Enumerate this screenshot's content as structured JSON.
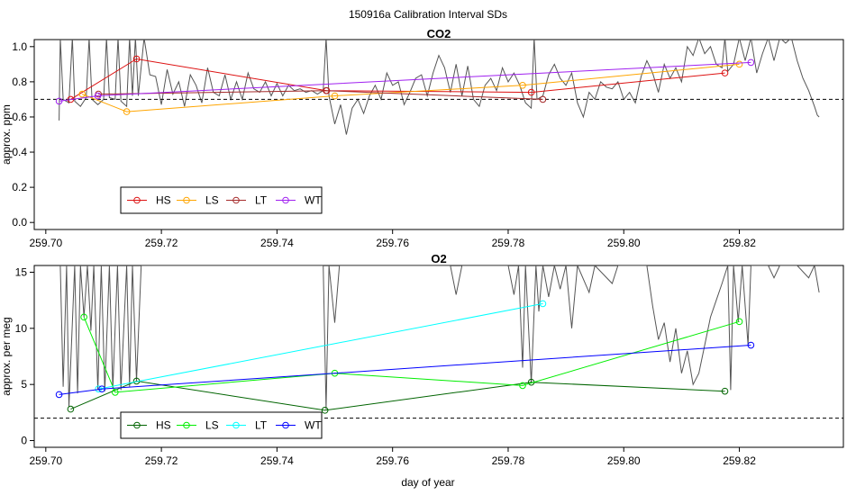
{
  "figure_title": "150916a   Calibration Interval SDs",
  "xlabel": "day of year",
  "chart_data": [
    {
      "type": "line",
      "title": "CO2",
      "ylabel": "approx. ppm",
      "xlim": [
        259.698,
        259.838
      ],
      "ylim": [
        -0.04,
        1.04
      ],
      "xticks": [
        259.7,
        259.72,
        259.74,
        259.76,
        259.78,
        259.8,
        259.82
      ],
      "xtick_labels": [
        "259.70",
        "259.72",
        "259.74",
        "259.76",
        "259.78",
        "259.80",
        "259.82"
      ],
      "yticks": [
        0.0,
        0.2,
        0.4,
        0.6,
        0.8,
        1.0
      ],
      "ytick_labels": [
        "0.0",
        "0.2",
        "0.4",
        "0.6",
        "0.8",
        "1.0"
      ],
      "threshold": 0.7,
      "trace_color": "#555555",
      "trace": [
        [
          259.7023,
          0.58
        ],
        [
          259.7025,
          1.05
        ],
        [
          259.703,
          0.7
        ],
        [
          259.704,
          0.68
        ],
        [
          259.7046,
          1.05
        ],
        [
          259.705,
          0.69
        ],
        [
          259.706,
          0.66
        ],
        [
          259.707,
          0.71
        ],
        [
          259.7075,
          1.05
        ],
        [
          259.708,
          0.7
        ],
        [
          259.709,
          0.67
        ],
        [
          259.71,
          0.7
        ],
        [
          259.7105,
          1.05
        ],
        [
          259.711,
          0.71
        ],
        [
          259.712,
          0.7
        ],
        [
          259.7125,
          1.05
        ],
        [
          259.713,
          0.69
        ],
        [
          259.714,
          0.66
        ],
        [
          259.7145,
          1.05
        ],
        [
          259.715,
          0.72
        ],
        [
          259.7155,
          1.05
        ],
        [
          259.716,
          0.72
        ],
        [
          259.717,
          1.05
        ],
        [
          259.718,
          0.84
        ],
        [
          259.719,
          0.83
        ],
        [
          259.72,
          0.67
        ],
        [
          259.721,
          0.87
        ],
        [
          259.722,
          0.73
        ],
        [
          259.723,
          0.8
        ],
        [
          259.724,
          0.66
        ],
        [
          259.725,
          0.84
        ],
        [
          259.726,
          0.78
        ],
        [
          259.727,
          0.68
        ],
        [
          259.728,
          0.88
        ],
        [
          259.729,
          0.74
        ],
        [
          259.73,
          0.72
        ],
        [
          259.731,
          0.84
        ],
        [
          259.732,
          0.7
        ],
        [
          259.733,
          0.8
        ],
        [
          259.734,
          0.7
        ],
        [
          259.735,
          0.85
        ],
        [
          259.736,
          0.76
        ],
        [
          259.737,
          0.74
        ],
        [
          259.738,
          0.8
        ],
        [
          259.739,
          0.72
        ],
        [
          259.74,
          0.79
        ],
        [
          259.741,
          0.72
        ],
        [
          259.742,
          0.78
        ],
        [
          259.743,
          0.75
        ],
        [
          259.744,
          0.76
        ],
        [
          259.745,
          0.74
        ],
        [
          259.746,
          0.75
        ],
        [
          259.747,
          0.73
        ],
        [
          259.748,
          0.75
        ],
        [
          259.7485,
          1.05
        ],
        [
          259.749,
          0.72
        ],
        [
          259.75,
          0.56
        ],
        [
          259.751,
          0.67
        ],
        [
          259.752,
          0.5
        ],
        [
          259.753,
          0.65
        ],
        [
          259.754,
          0.7
        ],
        [
          259.755,
          0.62
        ],
        [
          259.756,
          0.72
        ],
        [
          259.757,
          0.78
        ],
        [
          259.758,
          0.7
        ],
        [
          259.759,
          0.85
        ],
        [
          259.76,
          0.78
        ],
        [
          259.761,
          0.8
        ],
        [
          259.762,
          0.67
        ],
        [
          259.763,
          0.74
        ],
        [
          259.764,
          0.82
        ],
        [
          259.765,
          0.84
        ],
        [
          259.766,
          0.72
        ],
        [
          259.767,
          0.85
        ],
        [
          259.768,
          0.95
        ],
        [
          259.769,
          0.88
        ],
        [
          259.77,
          0.74
        ],
        [
          259.771,
          0.9
        ],
        [
          259.772,
          0.72
        ],
        [
          259.773,
          0.89
        ],
        [
          259.774,
          0.7
        ],
        [
          259.775,
          0.66
        ],
        [
          259.776,
          0.78
        ],
        [
          259.777,
          0.82
        ],
        [
          259.778,
          0.75
        ],
        [
          259.779,
          0.88
        ],
        [
          259.78,
          0.8
        ],
        [
          259.781,
          0.85
        ],
        [
          259.782,
          0.78
        ],
        [
          259.783,
          0.68
        ],
        [
          259.784,
          0.65
        ],
        [
          259.7845,
          1.05
        ],
        [
          259.785,
          0.7
        ],
        [
          259.786,
          0.72
        ],
        [
          259.787,
          0.84
        ],
        [
          259.788,
          0.9
        ],
        [
          259.789,
          0.82
        ],
        [
          259.79,
          0.78
        ],
        [
          259.791,
          0.85
        ],
        [
          259.792,
          0.68
        ],
        [
          259.793,
          0.6
        ],
        [
          259.794,
          0.74
        ],
        [
          259.795,
          0.7
        ],
        [
          259.796,
          0.8
        ],
        [
          259.797,
          0.77
        ],
        [
          259.798,
          0.76
        ],
        [
          259.799,
          0.8
        ],
        [
          259.8,
          0.7
        ],
        [
          259.801,
          0.74
        ],
        [
          259.802,
          0.68
        ],
        [
          259.803,
          0.83
        ],
        [
          259.804,
          0.92
        ],
        [
          259.805,
          0.85
        ],
        [
          259.806,
          0.74
        ],
        [
          259.807,
          0.9
        ],
        [
          259.808,
          0.82
        ],
        [
          259.809,
          0.88
        ],
        [
          259.81,
          0.8
        ],
        [
          259.811,
          1.0
        ],
        [
          259.812,
          0.95
        ],
        [
          259.813,
          1.05
        ],
        [
          259.814,
          0.96
        ],
        [
          259.815,
          1.0
        ],
        [
          259.816,
          0.9
        ],
        [
          259.817,
          0.88
        ],
        [
          259.8175,
          1.05
        ],
        [
          259.818,
          0.86
        ],
        [
          259.819,
          0.9
        ],
        [
          259.82,
          1.05
        ],
        [
          259.821,
          0.92
        ],
        [
          259.822,
          1.05
        ],
        [
          259.823,
          0.85
        ],
        [
          259.824,
          0.96
        ],
        [
          259.825,
          1.05
        ],
        [
          259.826,
          0.92
        ],
        [
          259.827,
          1.05
        ],
        [
          259.828,
          1.02
        ],
        [
          259.829,
          1.05
        ],
        [
          259.83,
          0.92
        ],
        [
          259.831,
          0.82
        ],
        [
          259.832,
          0.75
        ],
        [
          259.833,
          0.66
        ],
        [
          259.8335,
          0.61
        ],
        [
          259.8338,
          0.6
        ]
      ],
      "legend": [
        "HS",
        "LS",
        "LT",
        "WT"
      ],
      "series": [
        {
          "name": "HS",
          "color": "#dd1111",
          "x": [
            259.7043,
            259.7157,
            259.7486,
            259.784,
            259.8175
          ],
          "y": [
            0.7,
            0.93,
            0.75,
            0.74,
            0.85
          ]
        },
        {
          "name": "LS",
          "color": "#ffa500",
          "x": [
            259.7063,
            259.714,
            259.75,
            259.7825,
            259.82
          ],
          "y": [
            0.73,
            0.63,
            0.72,
            0.78,
            0.9
          ]
        },
        {
          "name": "LT",
          "color": "#a52a2a",
          "x": [
            259.7091,
            259.7485,
            259.786
          ],
          "y": [
            0.73,
            0.75,
            0.7
          ]
        },
        {
          "name": "WT",
          "color": "#a020f0",
          "x": [
            259.7023,
            259.709,
            259.822
          ],
          "y": [
            0.69,
            0.72,
            0.91
          ]
        }
      ]
    },
    {
      "type": "line",
      "title": "O2",
      "ylabel": "approx. per meg",
      "xlim": [
        259.698,
        259.838
      ],
      "ylim": [
        -0.6,
        15.6
      ],
      "xticks": [
        259.7,
        259.72,
        259.74,
        259.76,
        259.78,
        259.8,
        259.82
      ],
      "xtick_labels": [
        "259.70",
        "259.72",
        "259.74",
        "259.76",
        "259.78",
        "259.80",
        "259.82"
      ],
      "yticks": [
        0,
        5,
        10,
        15
      ],
      "ytick_labels": [
        "0",
        "5",
        "10",
        "15"
      ],
      "threshold": 2,
      "trace_color": "#555555",
      "trace": [
        [
          259.7025,
          15.6
        ],
        [
          259.703,
          4.8
        ],
        [
          259.7036,
          15.6
        ],
        [
          259.704,
          3.0
        ],
        [
          259.705,
          15.6
        ],
        [
          259.7055,
          4.2
        ],
        [
          259.706,
          15.6
        ],
        [
          259.7066,
          11.0
        ],
        [
          259.7072,
          15.6
        ],
        [
          259.7078,
          9.8
        ],
        [
          259.7083,
          15.6
        ],
        [
          259.709,
          4.5
        ],
        [
          259.7096,
          15.6
        ],
        [
          259.7102,
          4.4
        ],
        [
          259.711,
          15.6
        ],
        [
          259.7116,
          4.6
        ],
        [
          259.7124,
          15.6
        ],
        [
          259.713,
          4.5
        ],
        [
          259.714,
          15.6
        ],
        [
          259.7145,
          4.8
        ],
        [
          259.715,
          15.6
        ],
        [
          259.7157,
          5.3
        ],
        [
          259.7165,
          15.6
        ],
        [
          259.748,
          15.6
        ],
        [
          259.7485,
          2.8
        ],
        [
          259.749,
          15.6
        ],
        [
          259.75,
          10.5
        ],
        [
          259.7508,
          15.6
        ],
        [
          259.77,
          15.6
        ],
        [
          259.771,
          13.0
        ],
        [
          259.772,
          15.6
        ],
        [
          259.78,
          15.6
        ],
        [
          259.781,
          13.0
        ],
        [
          259.7818,
          15.6
        ],
        [
          259.7825,
          6.5
        ],
        [
          259.783,
          15.6
        ],
        [
          259.784,
          5.1
        ],
        [
          259.7848,
          15.6
        ],
        [
          259.7853,
          11.5
        ],
        [
          259.786,
          15.6
        ],
        [
          259.787,
          12.8
        ],
        [
          259.788,
          15.6
        ],
        [
          259.789,
          13.5
        ],
        [
          259.79,
          15.6
        ],
        [
          259.791,
          10.0
        ],
        [
          259.792,
          15.6
        ],
        [
          259.794,
          13.2
        ],
        [
          259.795,
          15.6
        ],
        [
          259.798,
          14.0
        ],
        [
          259.799,
          15.6
        ],
        [
          259.804,
          15.6
        ],
        [
          259.805,
          12.0
        ],
        [
          259.806,
          9.0
        ],
        [
          259.807,
          10.5
        ],
        [
          259.808,
          7.0
        ],
        [
          259.809,
          10.0
        ],
        [
          259.81,
          6.0
        ],
        [
          259.811,
          8.0
        ],
        [
          259.812,
          5.0
        ],
        [
          259.813,
          6.0
        ],
        [
          259.814,
          8.5
        ],
        [
          259.815,
          11.0
        ],
        [
          259.816,
          12.5
        ],
        [
          259.817,
          14.0
        ],
        [
          259.818,
          15.6
        ],
        [
          259.8185,
          4.5
        ],
        [
          259.819,
          15.6
        ],
        [
          259.8198,
          10.6
        ],
        [
          259.8205,
          15.6
        ],
        [
          259.8215,
          8.5
        ],
        [
          259.822,
          15.6
        ],
        [
          259.825,
          15.6
        ],
        [
          259.826,
          14.5
        ],
        [
          259.827,
          15.6
        ],
        [
          259.83,
          15.6
        ],
        [
          259.832,
          14.5
        ],
        [
          259.833,
          15.6
        ],
        [
          259.8338,
          13.2
        ]
      ],
      "legend": [
        "HS",
        "LS",
        "LT",
        "WT"
      ],
      "series": [
        {
          "name": "HS",
          "color": "#006400",
          "x": [
            259.7043,
            259.7157,
            259.7483,
            259.784,
            259.8175
          ],
          "y": [
            2.8,
            5.3,
            2.7,
            5.2,
            4.4
          ]
        },
        {
          "name": "LS",
          "color": "#00ee00",
          "x": [
            259.7066,
            259.712,
            259.75,
            259.7825,
            259.82
          ],
          "y": [
            11.0,
            4.3,
            6.0,
            4.9,
            10.6
          ]
        },
        {
          "name": "LT",
          "color": "#00ffff",
          "x": [
            259.7091,
            259.786
          ],
          "y": [
            4.6,
            12.2
          ]
        },
        {
          "name": "WT",
          "color": "#0000ff",
          "x": [
            259.7023,
            259.7097,
            259.822
          ],
          "y": [
            4.1,
            4.6,
            8.5
          ]
        }
      ]
    }
  ]
}
